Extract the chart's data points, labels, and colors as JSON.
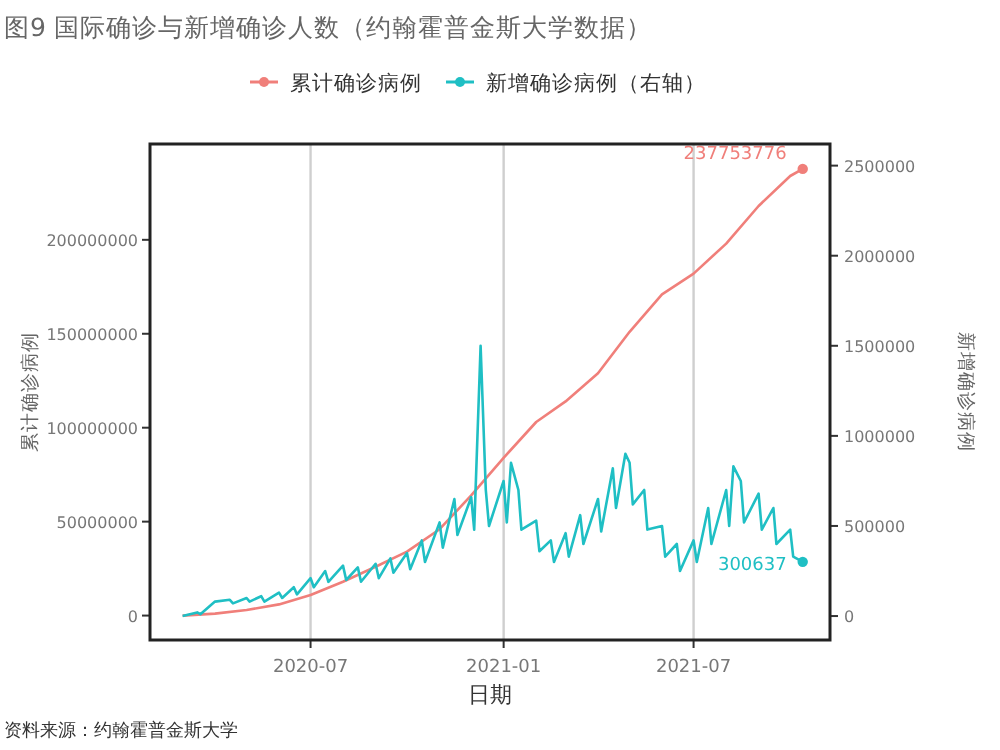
{
  "chart_data": {
    "type": "line",
    "title": "图9 国际确诊与新增确诊人数（约翰霍普金斯大学数据）",
    "xlabel": "日期",
    "ylabel": "累计确诊病例",
    "y2label": "新增确诊病例",
    "legend": "top",
    "grid": "x",
    "xlim": [
      "2020-01-30",
      "2021-11-08"
    ],
    "xticks": [
      {
        "value": "2020-07-01",
        "label": "2020-07"
      },
      {
        "value": "2021-01-01",
        "label": "2021-01"
      },
      {
        "value": "2021-07-01",
        "label": "2021-07"
      }
    ],
    "ylim": [
      -13000000,
      251000000
    ],
    "yticks": [
      0,
      50000000,
      100000000,
      150000000,
      200000000
    ],
    "y2lim": [
      -133000,
      2620000
    ],
    "y2ticks": [
      0,
      500000,
      1000000,
      1500000,
      2000000,
      2500000
    ],
    "series": [
      {
        "name": "累计确诊病例",
        "color": "#f07f7a",
        "x": [
          "2020-03-01",
          "2020-04-01",
          "2020-05-01",
          "2020-06-01",
          "2020-07-01",
          "2020-08-01",
          "2020-09-01",
          "2020-10-01",
          "2020-11-01",
          "2020-12-01",
          "2021-01-01",
          "2021-02-01",
          "2021-03-01",
          "2021-04-01",
          "2021-05-01",
          "2021-06-01",
          "2021-07-01",
          "2021-08-01",
          "2021-09-01",
          "2021-10-01",
          "2021-10-13"
        ],
        "values": [
          0,
          1000000,
          3000000,
          6000000,
          11000000,
          18000000,
          26000000,
          34000000,
          46000000,
          64000000,
          84000000,
          103000000,
          114000000,
          129000000,
          151000000,
          171000000,
          182000000,
          198000000,
          218000000,
          234000000,
          237753776
        ],
        "value_labels": [
          null,
          null,
          null,
          null,
          null,
          null,
          null,
          null,
          null,
          null,
          null,
          null,
          null,
          null,
          null,
          null,
          null,
          null,
          null,
          null,
          "237753776"
        ]
      },
      {
        "name": "新增确诊病例（右轴）",
        "color": "#1fbfc4",
        "axis": "y2",
        "x": [
          "2020-03-01",
          "2020-03-15",
          "2020-03-18",
          "2020-04-01",
          "2020-04-15",
          "2020-04-18",
          "2020-05-01",
          "2020-05-04",
          "2020-05-15",
          "2020-05-18",
          "2020-06-01",
          "2020-06-04",
          "2020-06-15",
          "2020-06-18",
          "2020-07-01",
          "2020-07-04",
          "2020-07-15",
          "2020-07-18",
          "2020-08-01",
          "2020-08-04",
          "2020-08-15",
          "2020-08-18",
          "2020-09-01",
          "2020-09-04",
          "2020-09-15",
          "2020-09-18",
          "2020-10-01",
          "2020-10-04",
          "2020-10-15",
          "2020-10-18",
          "2020-11-01",
          "2020-11-04",
          "2020-11-15",
          "2020-11-18",
          "2020-12-01",
          "2020-12-04",
          "2020-12-10",
          "2020-12-15",
          "2020-12-18",
          "2021-01-01",
          "2021-01-04",
          "2021-01-08",
          "2021-01-15",
          "2021-01-18",
          "2021-02-01",
          "2021-02-04",
          "2021-02-15",
          "2021-02-18",
          "2021-03-01",
          "2021-03-04",
          "2021-03-15",
          "2021-03-18",
          "2021-04-01",
          "2021-04-04",
          "2021-04-15",
          "2021-04-18",
          "2021-04-27",
          "2021-05-01",
          "2021-05-04",
          "2021-05-15",
          "2021-05-18",
          "2021-06-01",
          "2021-06-04",
          "2021-06-15",
          "2021-06-18",
          "2021-07-01",
          "2021-07-04",
          "2021-07-15",
          "2021-07-18",
          "2021-08-01",
          "2021-08-04",
          "2021-08-08",
          "2021-08-15",
          "2021-08-18",
          "2021-09-01",
          "2021-09-04",
          "2021-09-15",
          "2021-09-18",
          "2021-10-01",
          "2021-10-04",
          "2021-10-13"
        ],
        "values": [
          0,
          20000,
          10000,
          80000,
          90000,
          70000,
          100000,
          80000,
          110000,
          80000,
          130000,
          100000,
          160000,
          120000,
          210000,
          160000,
          250000,
          190000,
          280000,
          200000,
          270000,
          190000,
          290000,
          210000,
          320000,
          240000,
          350000,
          260000,
          420000,
          300000,
          520000,
          380000,
          650000,
          450000,
          660000,
          480000,
          1500000,
          700000,
          500000,
          750000,
          520000,
          850000,
          700000,
          480000,
          530000,
          360000,
          420000,
          300000,
          460000,
          330000,
          560000,
          400000,
          650000,
          470000,
          820000,
          600000,
          900000,
          850000,
          620000,
          700000,
          480000,
          500000,
          330000,
          400000,
          250000,
          420000,
          300000,
          600000,
          400000,
          700000,
          500000,
          830000,
          750000,
          520000,
          680000,
          480000,
          600000,
          400000,
          480000,
          330000,
          300637
        ],
        "value_labels": [
          null,
          null,
          null,
          null,
          null,
          null,
          null,
          null,
          null,
          null,
          null,
          null,
          null,
          null,
          null,
          null,
          null,
          null,
          null,
          null,
          null,
          null,
          null,
          null,
          null,
          null,
          null,
          null,
          null,
          null,
          null,
          null,
          null,
          null,
          null,
          null,
          null,
          null,
          null,
          null,
          null,
          null,
          null,
          null,
          null,
          null,
          null,
          null,
          null,
          null,
          null,
          null,
          null,
          null,
          null,
          null,
          null,
          null,
          null,
          null,
          null,
          null,
          null,
          null,
          null,
          null,
          null,
          null,
          null,
          null,
          null,
          null,
          null,
          null,
          null,
          null,
          null,
          null,
          null,
          null,
          "300637"
        ]
      }
    ],
    "annotations": [
      "资料来源：约翰霍普金斯大学"
    ]
  }
}
